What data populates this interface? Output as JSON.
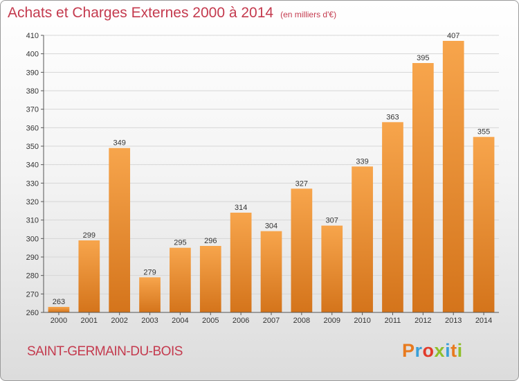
{
  "header": {
    "title": "Achats et Charges Externes 2000 à 2014",
    "unit": "(en milliers d'€)"
  },
  "footer": {
    "commune": "SAINT-GERMAIN-DU-BOIS",
    "logo": "Proxiti",
    "logo_colors": [
      "#e87a1e",
      "#3aa0d8",
      "#e23b2b",
      "#8fbf2a",
      "#3aa0d8",
      "#e87a1e",
      "#8fbf2a"
    ]
  },
  "colors": {
    "bar_top": "#f7a54c",
    "bar_bottom": "#d4741b",
    "text_accent": "#c43a4e",
    "grid": "#d6d6d6"
  },
  "chart_data": {
    "type": "bar",
    "title": "Achats et Charges Externes 2000 à 2014",
    "subtitle": "(en milliers d'€)",
    "xlabel": "",
    "ylabel": "",
    "categories": [
      "2000",
      "2001",
      "2002",
      "2003",
      "2004",
      "2005",
      "2006",
      "2007",
      "2008",
      "2009",
      "2010",
      "2011",
      "2012",
      "2013",
      "2014"
    ],
    "values": [
      263,
      299,
      349,
      279,
      295,
      296,
      314,
      304,
      327,
      307,
      339,
      363,
      395,
      407,
      355
    ],
    "ylim": [
      260,
      410
    ],
    "yticks": [
      260,
      270,
      280,
      290,
      300,
      310,
      320,
      330,
      340,
      350,
      360,
      370,
      380,
      390,
      400,
      410
    ],
    "grid": true,
    "legend": "none"
  }
}
